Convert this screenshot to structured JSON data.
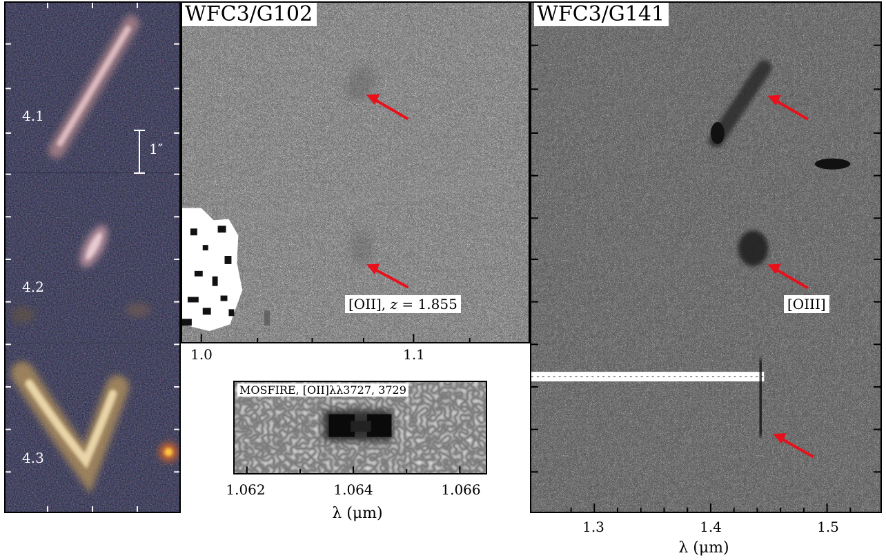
{
  "colors": {
    "arrow": "#e8101a",
    "frame": "#000000",
    "label_text": "#ffffff"
  },
  "rgb_panel": {
    "images": [
      {
        "label": "4.1"
      },
      {
        "label": "4.2"
      },
      {
        "label": "4.3"
      }
    ],
    "scalebar_label": "1″"
  },
  "g102_panel": {
    "title": "WFC3/G102",
    "annotation_prefix": "[OII], ",
    "annotation_var": "z",
    "annotation_rest": " = 1.855",
    "x_ticks": [
      "1.0",
      "1.1"
    ]
  },
  "g141_panel": {
    "title": "WFC3/G141",
    "annotation": "[OIII]",
    "x_ticks": [
      "1.3",
      "1.4",
      "1.5"
    ],
    "xlabel": "λ (μm)"
  },
  "mosfire_inset": {
    "title": "MOSFIRE, [OII]λλ3727, 3729",
    "x_ticks": [
      "1.062",
      "1.064",
      "1.066"
    ],
    "xlabel": "λ (μm)"
  }
}
